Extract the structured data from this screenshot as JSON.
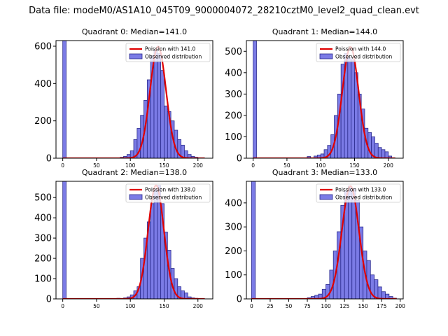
{
  "figure": {
    "suptitle": "Data file: modeM0/AS1A10_045T09_9000004072_28210cztM0_level2_quad_clean.evt"
  },
  "colors": {
    "bar_fill": "#7b7be6",
    "bar_edge": "#2a2a8c",
    "poisson_line": "#e00000",
    "axis": "#000000"
  },
  "chart_data": [
    {
      "type": "bar",
      "title": "Quadrant 0: Median=141.0",
      "ylim": [
        0,
        630
      ],
      "xlim": [
        -10,
        222
      ],
      "xticks": [
        0,
        50,
        100,
        150,
        200
      ],
      "yticks": [
        0,
        200,
        400,
        600
      ],
      "legend_position": "top-right",
      "legend": [
        "Poission with 141.0",
        "Observed distribution"
      ],
      "bin_width": 5,
      "bins_left": [
        0,
        85,
        90,
        95,
        100,
        105,
        110,
        115,
        120,
        125,
        130,
        135,
        140,
        145,
        150,
        155,
        160,
        165,
        170,
        175,
        180,
        185,
        190,
        195,
        200,
        205
      ],
      "counts": [
        630,
        5,
        10,
        20,
        40,
        100,
        160,
        230,
        310,
        420,
        550,
        580,
        560,
        470,
        280,
        250,
        200,
        150,
        100,
        70,
        40,
        20,
        10,
        5,
        2,
        1
      ],
      "poisson_mean": 141.0,
      "poisson_peak": 598,
      "poisson_sigma": 11.9,
      "poisson_range": [
        0,
        210
      ]
    },
    {
      "type": "bar",
      "title": "Quadrant 1: Median=144.0",
      "ylim": [
        0,
        550
      ],
      "xlim": [
        -10,
        222
      ],
      "xticks": [
        0,
        50,
        100,
        150,
        200
      ],
      "yticks": [
        0,
        100,
        200,
        300,
        400,
        500
      ],
      "legend_position": "top-right",
      "legend": [
        "Poission with 144.0",
        "Observed distribution"
      ],
      "bin_width": 5,
      "bins_left": [
        0,
        80,
        90,
        95,
        100,
        105,
        110,
        115,
        120,
        125,
        130,
        135,
        140,
        145,
        150,
        155,
        160,
        165,
        170,
        175,
        180,
        185,
        190,
        195,
        200,
        205
      ],
      "counts": [
        550,
        8,
        10,
        15,
        20,
        40,
        60,
        110,
        200,
        300,
        440,
        490,
        470,
        460,
        400,
        300,
        230,
        140,
        120,
        100,
        70,
        50,
        40,
        30,
        10,
        2
      ],
      "poisson_mean": 144.0,
      "poisson_peak": 520,
      "poisson_sigma": 12.0,
      "poisson_range": [
        0,
        210
      ]
    },
    {
      "type": "bar",
      "title": "Quadrant 2: Median=138.0",
      "ylim": [
        0,
        580
      ],
      "xlim": [
        -10,
        222
      ],
      "xticks": [
        0,
        50,
        100,
        150,
        200
      ],
      "yticks": [
        0,
        100,
        200,
        300,
        400,
        500
      ],
      "legend_position": "top-right",
      "legend": [
        "Poission with 138.0",
        "Observed distribution"
      ],
      "bin_width": 5,
      "bins_left": [
        0,
        80,
        90,
        95,
        100,
        105,
        110,
        115,
        120,
        125,
        130,
        135,
        140,
        145,
        150,
        155,
        160,
        165,
        170,
        175,
        180,
        185,
        190,
        195,
        200,
        205
      ],
      "counts": [
        580,
        3,
        5,
        10,
        20,
        40,
        60,
        200,
        300,
        380,
        470,
        540,
        560,
        470,
        330,
        240,
        150,
        100,
        60,
        40,
        30,
        10,
        5,
        3,
        2,
        1
      ],
      "poisson_mean": 138.0,
      "poisson_peak": 560,
      "poisson_sigma": 11.7,
      "poisson_range": [
        0,
        210
      ]
    },
    {
      "type": "bar",
      "title": "Quadrant 3: Median=133.0",
      "ylim": [
        0,
        490
      ],
      "xlim": [
        -7,
        204
      ],
      "xticks": [
        0,
        25,
        50,
        75,
        100,
        125,
        150,
        175,
        200
      ],
      "yticks": [
        0,
        100,
        200,
        300,
        400
      ],
      "legend_position": "top-right",
      "legend": [
        "Poission with 133.0",
        "Observed distribution"
      ],
      "bin_width": 5,
      "bins_left": [
        0,
        75,
        80,
        85,
        90,
        95,
        100,
        105,
        110,
        115,
        120,
        125,
        130,
        135,
        140,
        145,
        150,
        155,
        160,
        165,
        170,
        175,
        180,
        185,
        190
      ],
      "counts": [
        490,
        5,
        10,
        15,
        20,
        40,
        60,
        120,
        200,
        280,
        390,
        450,
        470,
        460,
        410,
        300,
        200,
        160,
        100,
        80,
        50,
        30,
        20,
        10,
        3
      ],
      "poisson_mean": 133.0,
      "poisson_peak": 470,
      "poisson_sigma": 11.5,
      "poisson_range": [
        0,
        195
      ]
    }
  ]
}
